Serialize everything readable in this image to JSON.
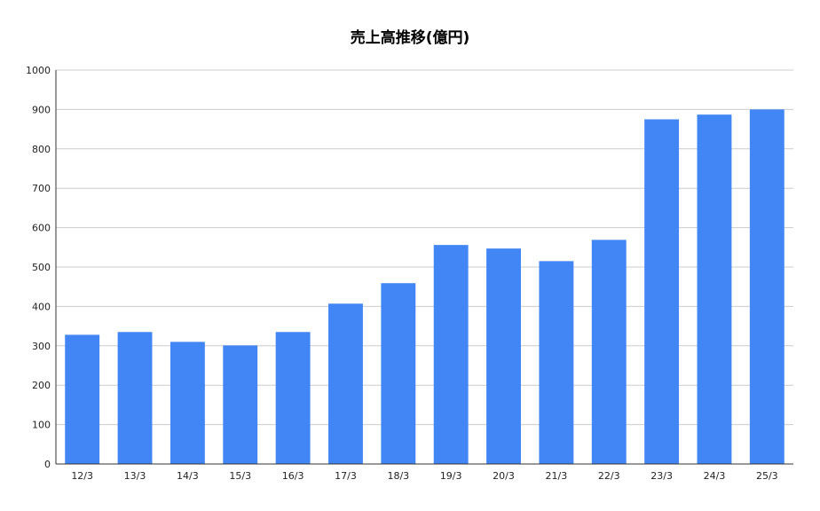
{
  "chart_data": {
    "type": "bar",
    "title": "売上高推移(億円)",
    "xlabel": "",
    "ylabel": "",
    "categories": [
      "12/3",
      "13/3",
      "14/3",
      "15/3",
      "16/3",
      "17/3",
      "18/3",
      "19/3",
      "20/3",
      "21/3",
      "22/3",
      "23/3",
      "24/3",
      "25/3"
    ],
    "values": [
      328,
      335,
      310,
      301,
      335,
      407,
      459,
      556,
      547,
      515,
      569,
      875,
      887,
      900
    ],
    "ylim": [
      0,
      1000
    ],
    "yticks": [
      "0",
      "100",
      "200",
      "300",
      "400",
      "500",
      "600",
      "700",
      "800",
      "900",
      "1000"
    ],
    "grid": true,
    "legend": "none",
    "bar_color": "#4285f4",
    "grid_color": "#cccccc"
  }
}
